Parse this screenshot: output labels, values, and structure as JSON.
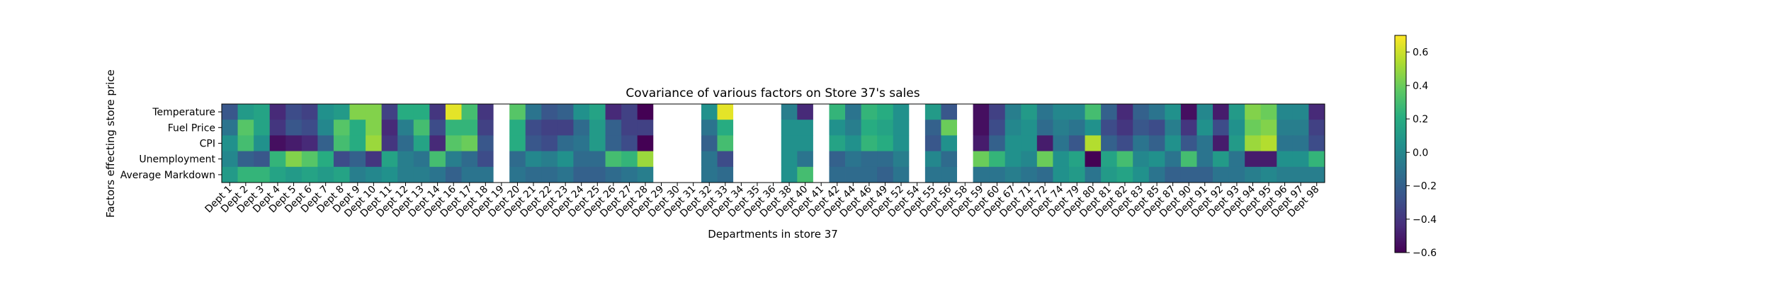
{
  "chart_data": {
    "type": "heatmap",
    "title": "Covariance of various factors on Store 37's sales",
    "xlabel": "Departments in store 37",
    "ylabel": "Factors effecting store price",
    "rows": [
      "Temperature",
      "Fuel Price",
      "CPI",
      "Unemployment",
      "Average Markdown"
    ],
    "columns": [
      "Dept 1",
      "Dept 2",
      "Dept 3",
      "Dept 4",
      "Dept 5",
      "Dept 6",
      "Dept 7",
      "Dept 8",
      "Dept 9",
      "Dept 10",
      "Dept 11",
      "Dept 12",
      "Dept 13",
      "Dept 14",
      "Dept 16",
      "Dept 17",
      "Dept 18",
      "Dept 19",
      "Dept 20",
      "Dept 21",
      "Dept 22",
      "Dept 23",
      "Dept 24",
      "Dept 25",
      "Dept 26",
      "Dept 27",
      "Dept 28",
      "Dept 29",
      "Dept 30",
      "Dept 31",
      "Dept 32",
      "Dept 33",
      "Dept 34",
      "Dept 35",
      "Dept 36",
      "Dept 38",
      "Dept 40",
      "Dept 41",
      "Dept 42",
      "Dept 44",
      "Dept 46",
      "Dept 49",
      "Dept 52",
      "Dept 54",
      "Dept 55",
      "Dept 56",
      "Dept 58",
      "Dept 59",
      "Dept 60",
      "Dept 67",
      "Dept 71",
      "Dept 72",
      "Dept 74",
      "Dept 79",
      "Dept 80",
      "Dept 81",
      "Dept 82",
      "Dept 83",
      "Dept 85",
      "Dept 87",
      "Dept 90",
      "Dept 91",
      "Dept 92",
      "Dept 93",
      "Dept 94",
      "Dept 95",
      "Dept 96",
      "Dept 97",
      "Dept 98"
    ],
    "values": [
      [
        -0.25,
        0.1,
        0.15,
        -0.45,
        -0.3,
        -0.35,
        0.05,
        0.1,
        0.45,
        0.45,
        -0.35,
        0.2,
        0.2,
        -0.4,
        0.65,
        0.3,
        -0.4,
        null,
        0.35,
        -0.1,
        -0.25,
        -0.2,
        0.05,
        0.15,
        -0.45,
        -0.35,
        -0.6,
        null,
        null,
        null,
        0.05,
        0.65,
        null,
        null,
        null,
        -0.05,
        -0.45,
        null,
        0.25,
        -0.1,
        0.25,
        0.2,
        0.05,
        null,
        0.1,
        -0.25,
        null,
        -0.55,
        -0.35,
        -0.05,
        0.1,
        -0.1,
        0.0,
        0.0,
        0.3,
        -0.2,
        -0.45,
        -0.2,
        -0.1,
        0.05,
        -0.55,
        0.0,
        -0.5,
        0.1,
        0.45,
        0.4,
        0.0,
        0.0,
        -0.45
      ],
      [
        -0.1,
        0.35,
        0.15,
        -0.4,
        -0.25,
        -0.3,
        0.0,
        0.35,
        0.2,
        0.45,
        -0.45,
        -0.05,
        0.3,
        -0.3,
        0.25,
        0.25,
        -0.35,
        null,
        0.2,
        -0.3,
        -0.35,
        -0.35,
        -0.15,
        0.1,
        -0.2,
        -0.35,
        -0.35,
        null,
        null,
        null,
        -0.1,
        0.2,
        null,
        null,
        null,
        0.05,
        0.05,
        null,
        0.05,
        -0.05,
        0.2,
        0.15,
        0.05,
        null,
        -0.2,
        0.4,
        null,
        -0.55,
        -0.3,
        0.0,
        0.05,
        -0.15,
        -0.05,
        -0.1,
        0.05,
        -0.3,
        -0.4,
        -0.25,
        -0.3,
        -0.05,
        -0.4,
        0.05,
        -0.3,
        0.05,
        0.4,
        0.45,
        -0.05,
        -0.05,
        -0.35
      ],
      [
        0.05,
        0.3,
        0.05,
        -0.55,
        -0.5,
        -0.45,
        -0.2,
        0.3,
        0.2,
        0.5,
        -0.4,
        -0.15,
        0.15,
        -0.45,
        0.35,
        0.4,
        -0.25,
        null,
        0.2,
        -0.25,
        -0.3,
        -0.15,
        -0.1,
        0.1,
        -0.2,
        -0.3,
        -0.6,
        null,
        null,
        null,
        -0.2,
        0.3,
        null,
        null,
        null,
        0.05,
        0.05,
        null,
        0.15,
        0.05,
        0.25,
        0.2,
        0.05,
        null,
        -0.25,
        0.05,
        null,
        -0.5,
        -0.2,
        0.05,
        0.05,
        -0.5,
        -0.1,
        -0.25,
        0.55,
        -0.2,
        -0.3,
        -0.1,
        -0.2,
        0.05,
        -0.25,
        -0.1,
        -0.5,
        0.1,
        0.5,
        0.55,
        -0.1,
        -0.1,
        -0.3
      ],
      [
        0.0,
        -0.2,
        -0.25,
        0.25,
        0.45,
        0.35,
        0.2,
        -0.3,
        -0.2,
        -0.4,
        0.15,
        -0.05,
        -0.1,
        0.3,
        -0.05,
        -0.15,
        -0.3,
        null,
        -0.15,
        0.0,
        -0.05,
        0.05,
        -0.15,
        -0.15,
        0.3,
        0.25,
        0.5,
        null,
        null,
        null,
        -0.1,
        -0.3,
        null,
        null,
        null,
        0.05,
        -0.1,
        null,
        -0.2,
        -0.1,
        -0.15,
        -0.15,
        -0.05,
        null,
        0.0,
        -0.15,
        null,
        0.4,
        0.25,
        0.05,
        0.0,
        0.4,
        0.05,
        0.15,
        -0.6,
        0.15,
        0.3,
        0.0,
        0.05,
        -0.1,
        0.3,
        -0.1,
        0.1,
        -0.1,
        -0.5,
        -0.5,
        0.05,
        0.05,
        0.25
      ],
      [
        0.1,
        0.25,
        0.25,
        0.15,
        0.1,
        0.15,
        0.1,
        0.15,
        -0.05,
        0.0,
        0.05,
        -0.05,
        -0.05,
        -0.1,
        -0.2,
        -0.1,
        -0.1,
        null,
        -0.1,
        -0.15,
        -0.15,
        -0.1,
        -0.2,
        -0.2,
        -0.15,
        -0.1,
        -0.05,
        null,
        null,
        null,
        -0.1,
        -0.15,
        null,
        null,
        null,
        0.05,
        0.3,
        null,
        -0.15,
        -0.15,
        -0.15,
        -0.2,
        -0.1,
        null,
        -0.1,
        -0.1,
        null,
        -0.1,
        -0.1,
        -0.05,
        -0.1,
        -0.15,
        0.05,
        0.1,
        -0.1,
        0.1,
        0.15,
        0.05,
        -0.1,
        -0.2,
        -0.2,
        -0.2,
        -0.1,
        -0.1,
        -0.05,
        0.0,
        -0.05,
        -0.05,
        -0.05
      ]
    ],
    "colorbar": {
      "colormap": "viridis",
      "vmin": -0.6,
      "vmax": 0.7,
      "ticks": [
        0.6,
        0.4,
        0.2,
        0.0,
        -0.2,
        -0.4,
        -0.6
      ]
    },
    "missing_color": "#ffffff",
    "grid": false
  }
}
